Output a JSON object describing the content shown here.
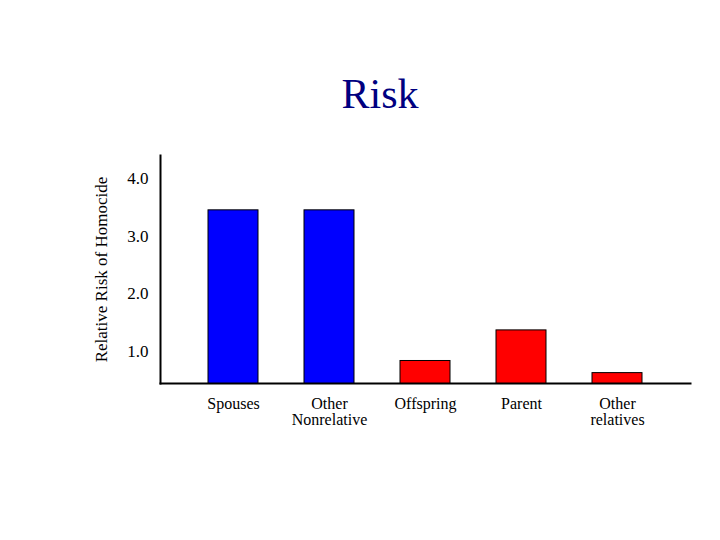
{
  "chart_data": {
    "type": "bar",
    "title": "Risk",
    "y_label": "Relative Risk of Homocide",
    "categories": [
      "Spouses",
      "Other Nonrelative",
      "Offspring",
      "Parent",
      "Other relatives"
    ],
    "values": [
      3.45,
      3.45,
      0.84,
      1.37,
      0.63
    ],
    "colors": [
      "#0000ff",
      "#0000ff",
      "#ff0000",
      "#ff0000",
      "#ff0000"
    ],
    "ylim": [
      0.45,
      4.4
    ],
    "yticks": [
      1,
      2,
      3,
      4
    ],
    "grid": false
  }
}
